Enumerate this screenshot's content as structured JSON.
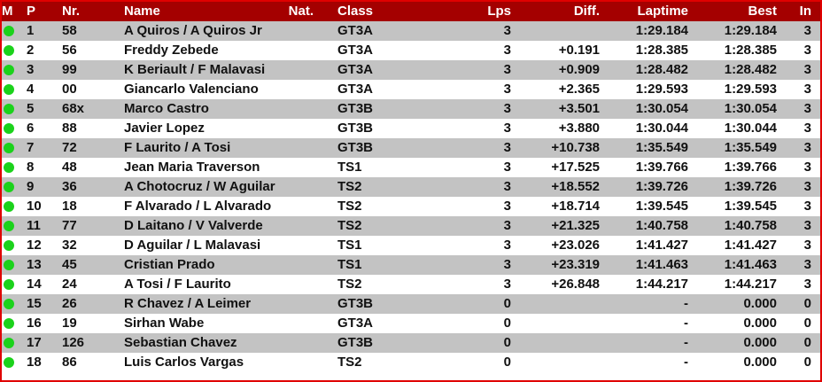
{
  "colors": {
    "header_bg": "#a40000",
    "border": "#e00000",
    "row_alt": "#c3c3c3",
    "status_dot": "#1bd21b"
  },
  "columns": {
    "m": "M",
    "p": "P",
    "nr": "Nr.",
    "name": "Name",
    "nat": "Nat.",
    "class": "Class",
    "lps": "Lps",
    "diff": "Diff.",
    "laptime": "Laptime",
    "best": "Best",
    "in": "In"
  },
  "rows": [
    {
      "status": "green",
      "p": "1",
      "nr": "58",
      "name": "A Quiros / A Quiros Jr",
      "nat": "",
      "class": "GT3A",
      "lps": "3",
      "diff": "",
      "laptime": "1:29.184",
      "best": "1:29.184",
      "in": "3"
    },
    {
      "status": "green",
      "p": "2",
      "nr": "56",
      "name": "Freddy Zebede",
      "nat": "",
      "class": "GT3A",
      "lps": "3",
      "diff": "+0.191",
      "laptime": "1:28.385",
      "best": "1:28.385",
      "in": "3"
    },
    {
      "status": "green",
      "p": "3",
      "nr": "99",
      "name": "K Beriault / F Malavasi",
      "nat": "",
      "class": "GT3A",
      "lps": "3",
      "diff": "+0.909",
      "laptime": "1:28.482",
      "best": "1:28.482",
      "in": "3"
    },
    {
      "status": "green",
      "p": "4",
      "nr": "00",
      "name": "Giancarlo Valenciano",
      "nat": "",
      "class": "GT3A",
      "lps": "3",
      "diff": "+2.365",
      "laptime": "1:29.593",
      "best": "1:29.593",
      "in": "3"
    },
    {
      "status": "green",
      "p": "5",
      "nr": "68x",
      "name": "Marco Castro",
      "nat": "",
      "class": "GT3B",
      "lps": "3",
      "diff": "+3.501",
      "laptime": "1:30.054",
      "best": "1:30.054",
      "in": "3"
    },
    {
      "status": "green",
      "p": "6",
      "nr": "88",
      "name": "Javier Lopez",
      "nat": "",
      "class": "GT3B",
      "lps": "3",
      "diff": "+3.880",
      "laptime": "1:30.044",
      "best": "1:30.044",
      "in": "3"
    },
    {
      "status": "green",
      "p": "7",
      "nr": "72",
      "name": "F Laurito / A Tosi",
      "nat": "",
      "class": "GT3B",
      "lps": "3",
      "diff": "+10.738",
      "laptime": "1:35.549",
      "best": "1:35.549",
      "in": "3"
    },
    {
      "status": "green",
      "p": "8",
      "nr": "48",
      "name": "Jean Maria Traverson",
      "nat": "",
      "class": "TS1",
      "lps": "3",
      "diff": "+17.525",
      "laptime": "1:39.766",
      "best": "1:39.766",
      "in": "3"
    },
    {
      "status": "green",
      "p": "9",
      "nr": "36",
      "name": "A Chotocruz / W Aguilar",
      "nat": "",
      "class": "TS2",
      "lps": "3",
      "diff": "+18.552",
      "laptime": "1:39.726",
      "best": "1:39.726",
      "in": "3"
    },
    {
      "status": "green",
      "p": "10",
      "nr": "18",
      "name": "F Alvarado / L Alvarado",
      "nat": "",
      "class": "TS2",
      "lps": "3",
      "diff": "+18.714",
      "laptime": "1:39.545",
      "best": "1:39.545",
      "in": "3"
    },
    {
      "status": "green",
      "p": "11",
      "nr": "77",
      "name": "D Laitano /  V Valverde",
      "nat": "",
      "class": "TS2",
      "lps": "3",
      "diff": "+21.325",
      "laptime": "1:40.758",
      "best": "1:40.758",
      "in": "3"
    },
    {
      "status": "green",
      "p": "12",
      "nr": "32",
      "name": "D Aguilar /  L Malavasi",
      "nat": "",
      "class": "TS1",
      "lps": "3",
      "diff": "+23.026",
      "laptime": "1:41.427",
      "best": "1:41.427",
      "in": "3"
    },
    {
      "status": "green",
      "p": "13",
      "nr": "45",
      "name": "Cristian Prado",
      "nat": "",
      "class": "TS1",
      "lps": "3",
      "diff": "+23.319",
      "laptime": "1:41.463",
      "best": "1:41.463",
      "in": "3"
    },
    {
      "status": "green",
      "p": "14",
      "nr": "24",
      "name": "A Tosi /  F Laurito",
      "nat": "",
      "class": "TS2",
      "lps": "3",
      "diff": "+26.848",
      "laptime": "1:44.217",
      "best": "1:44.217",
      "in": "3"
    },
    {
      "status": "green",
      "p": "15",
      "nr": "26",
      "name": "R Chavez / A Leimer",
      "nat": "",
      "class": "GT3B",
      "lps": "0",
      "diff": "",
      "laptime": "-",
      "best": "0.000",
      "in": "0"
    },
    {
      "status": "green",
      "p": "16",
      "nr": "19",
      "name": "Sirhan Wabe",
      "nat": "",
      "class": "GT3A",
      "lps": "0",
      "diff": "",
      "laptime": "-",
      "best": "0.000",
      "in": "0"
    },
    {
      "status": "green",
      "p": "17",
      "nr": "126",
      "name": "Sebastian Chavez",
      "nat": "",
      "class": "GT3B",
      "lps": "0",
      "diff": "",
      "laptime": "-",
      "best": "0.000",
      "in": "0"
    },
    {
      "status": "green",
      "p": "18",
      "nr": "86",
      "name": "Luis Carlos Vargas",
      "nat": "",
      "class": "TS2",
      "lps": "0",
      "diff": "",
      "laptime": "-",
      "best": "0.000",
      "in": "0"
    }
  ]
}
